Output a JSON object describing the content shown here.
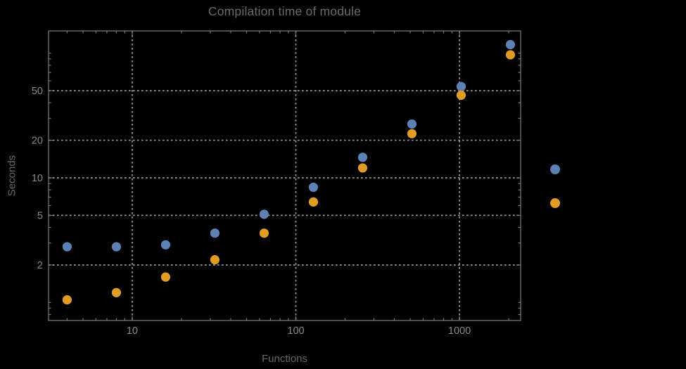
{
  "page": {
    "background_color": "#000000"
  },
  "chart_data": {
    "type": "scatter",
    "title": "Compilation time of module",
    "xlabel": "Functions",
    "ylabel": "Seconds",
    "x_scale": "log",
    "y_scale": "log",
    "xlim": [
      3.08,
      2366
    ],
    "ylim": [
      0.717,
      150.7
    ],
    "grid": "dotted-at-major-ticks",
    "legend_position": "right-outside",
    "x": [
      4,
      8,
      16,
      32,
      64,
      128,
      256,
      512,
      1024,
      2048
    ],
    "series": [
      {
        "name": "blue-points",
        "color": "#5e81b5",
        "values": [
          2.8,
          2.8,
          2.9,
          3.6,
          5.1,
          8.4,
          14.6,
          27,
          54,
          117
        ]
      },
      {
        "name": "orange-points",
        "color": "#e19c24",
        "values": [
          1.05,
          1.2,
          1.6,
          2.2,
          3.6,
          6.4,
          12,
          22.6,
          46,
          97
        ]
      }
    ],
    "x_ticks": {
      "major": [
        {
          "value": 10,
          "label": "10"
        },
        {
          "value": 100,
          "label": "100"
        },
        {
          "value": 1000,
          "label": "1000"
        }
      ],
      "minor": [
        4,
        5,
        6,
        7,
        8,
        9,
        20,
        30,
        40,
        50,
        60,
        70,
        80,
        90,
        200,
        300,
        400,
        500,
        600,
        700,
        800,
        900,
        2000
      ]
    },
    "y_ticks": {
      "major": [
        {
          "value": 2,
          "label": "2"
        },
        {
          "value": 5,
          "label": "5"
        },
        {
          "value": 10,
          "label": "10"
        },
        {
          "value": 20,
          "label": "20"
        },
        {
          "value": 50,
          "label": "50"
        }
      ],
      "minor": [
        0.8,
        0.9,
        1,
        3,
        4,
        6,
        7,
        8,
        9,
        30,
        40,
        60,
        70,
        80,
        90,
        100
      ]
    },
    "legend": {
      "entries": [
        {
          "marker_color": "#5e81b5",
          "label": ""
        },
        {
          "marker_color": "#e19c24",
          "label": ""
        }
      ]
    },
    "colors": {
      "gridline": "#9a9a9a",
      "frame": "#757575",
      "tick_label": "#8a8a8a",
      "title": "#6a6a6a",
      "axis_label": "#666666",
      "background": "#000000"
    }
  }
}
